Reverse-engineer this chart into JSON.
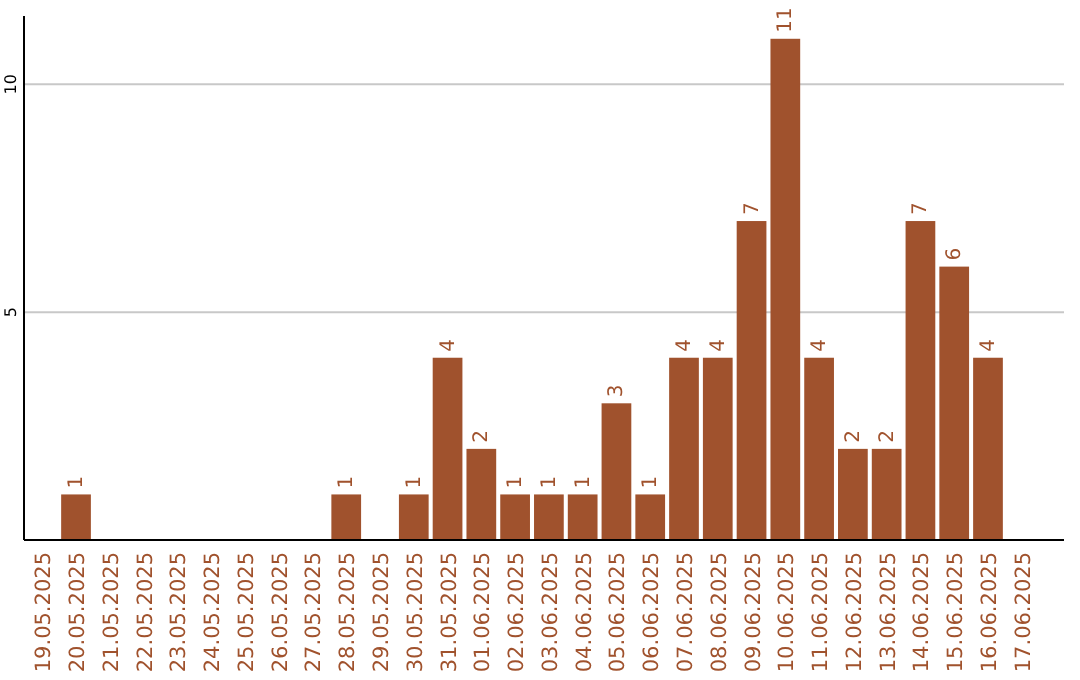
{
  "chart_data": {
    "type": "bar",
    "categories": [
      "19.05.2025",
      "20.05.2025",
      "21.05.2025",
      "22.05.2025",
      "23.05.2025",
      "24.05.2025",
      "25.05.2025",
      "26.05.2025",
      "27.05.2025",
      "28.05.2025",
      "29.05.2025",
      "30.05.2025",
      "31.05.2025",
      "01.06.2025",
      "02.06.2025",
      "03.06.2025",
      "04.06.2025",
      "05.06.2025",
      "06.06.2025",
      "07.06.2025",
      "08.06.2025",
      "09.06.2025",
      "10.06.2025",
      "11.06.2025",
      "12.06.2025",
      "13.06.2025",
      "14.06.2025",
      "15.06.2025",
      "16.06.2025",
      "17.06.2025"
    ],
    "values": [
      0,
      1,
      0,
      0,
      0,
      0,
      0,
      0,
      0,
      1,
      0,
      1,
      4,
      2,
      1,
      1,
      1,
      3,
      1,
      4,
      4,
      7,
      11,
      4,
      2,
      2,
      7,
      6,
      4,
      0
    ],
    "value_labels": [
      null,
      "1",
      null,
      null,
      null,
      null,
      null,
      null,
      null,
      "1",
      null,
      "1",
      "4",
      "2",
      "1",
      "1",
      "1",
      "3",
      "1",
      "4",
      "4",
      "7",
      "11",
      "4",
      "2",
      "2",
      "7",
      "6",
      "4",
      null
    ],
    "color": "#a0522d",
    "ylim": [
      0,
      11.5
    ],
    "yticks": [
      5,
      10
    ],
    "grid": "y"
  }
}
